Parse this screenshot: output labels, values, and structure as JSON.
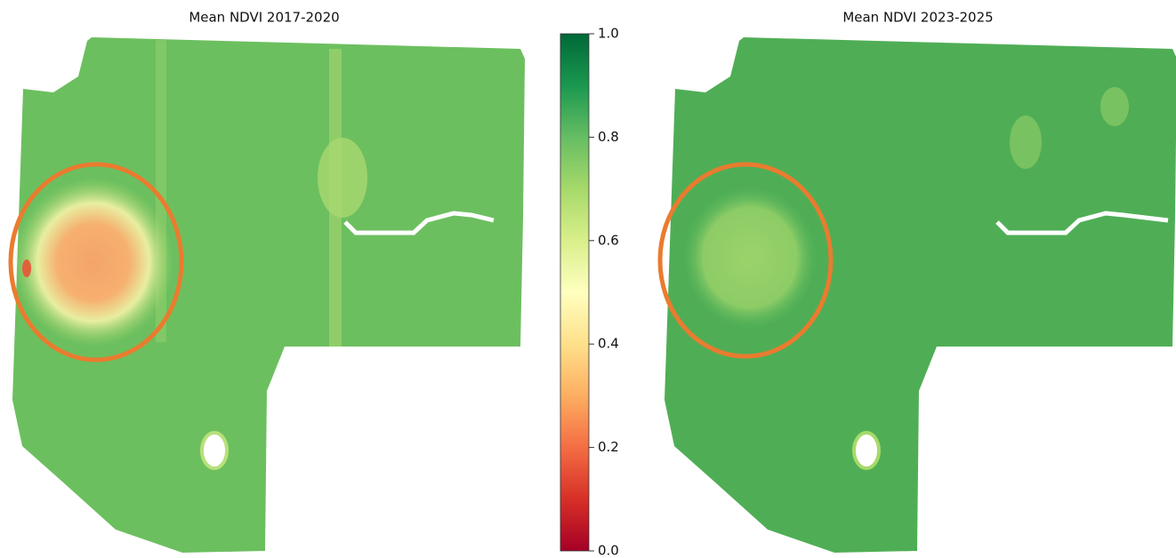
{
  "panels": [
    {
      "title": "Mean NDVI 2017-2020"
    },
    {
      "title": "Mean NDVI 2023-2025"
    }
  ],
  "colorbar": {
    "lim": [
      0,
      1
    ],
    "ticks": [
      {
        "value": 0,
        "label": "0.0"
      },
      0.2,
      0.4,
      0.6,
      0.8,
      {
        "value": 1,
        "label": "1.0"
      }
    ]
  }
}
